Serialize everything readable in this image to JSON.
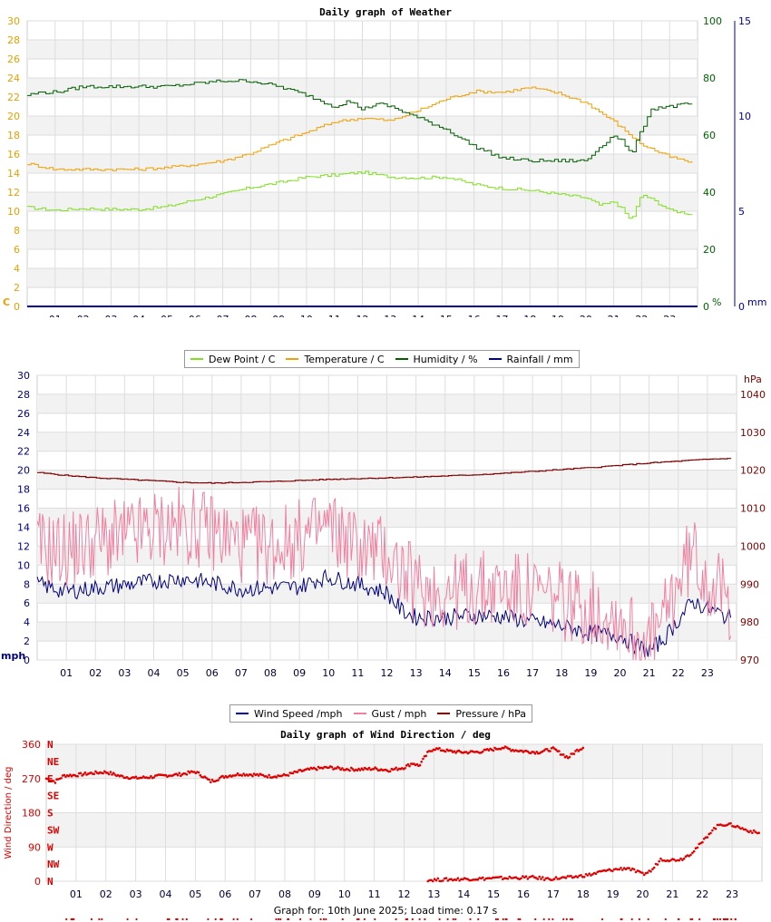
{
  "chart_data": [
    {
      "type": "line",
      "title": "Daily graph of Weather",
      "x_ticks": [
        "01",
        "02",
        "03",
        "04",
        "05",
        "06",
        "07",
        "08",
        "09",
        "10",
        "11",
        "12",
        "13",
        "14",
        "15",
        "16",
        "17",
        "18",
        "19",
        "20",
        "21",
        "22",
        "23"
      ],
      "x_range": [
        0,
        24
      ],
      "y_left": {
        "unit": "C",
        "ticks": [
          0,
          2,
          4,
          6,
          8,
          10,
          12,
          14,
          16,
          18,
          20,
          22,
          24,
          26,
          28,
          30
        ],
        "range": [
          0,
          30
        ],
        "color": "#e8a000"
      },
      "y_right1": {
        "unit": "%",
        "ticks": [
          0,
          20,
          40,
          60,
          80,
          100
        ],
        "range": [
          0,
          100
        ],
        "color": "#006400"
      },
      "y_right2": {
        "unit": "mm",
        "ticks": [
          0,
          5,
          10,
          15
        ],
        "range": [
          0,
          15
        ],
        "color": "#0000a0"
      },
      "grid": true,
      "legend": "bottom",
      "series": [
        {
          "name": "Dew Point / C",
          "color": "#80e020",
          "axis": "left",
          "x": [
            0,
            1,
            2,
            3,
            4,
            5,
            6,
            7,
            8,
            9,
            10,
            11,
            12,
            13,
            14,
            15,
            16,
            17,
            18,
            19,
            20,
            20.5,
            21,
            21.3,
            21.6,
            22,
            22.5,
            23,
            23.8
          ],
          "values": [
            10.4,
            10.1,
            10.3,
            10.2,
            10.2,
            10.5,
            11.2,
            11.8,
            12.5,
            13.0,
            13.6,
            13.8,
            14.1,
            13.6,
            13.5,
            13.6,
            12.8,
            12.4,
            12.2,
            11.8,
            11.4,
            10.6,
            11.0,
            10.2,
            9.0,
            11.8,
            11.0,
            10.1,
            9.7
          ]
        },
        {
          "name": "Temperature / C",
          "color": "#f0a000",
          "axis": "left",
          "x": [
            0,
            1,
            2,
            3,
            4,
            5,
            6,
            7,
            8,
            9,
            10,
            11,
            12,
            13,
            14,
            15,
            16,
            17,
            18,
            19,
            20,
            21,
            22,
            23,
            23.8
          ],
          "values": [
            15.0,
            14.4,
            14.4,
            14.4,
            14.4,
            14.6,
            14.9,
            15.3,
            16.1,
            17.3,
            18.3,
            19.4,
            19.8,
            19.5,
            20.6,
            21.8,
            22.6,
            22.5,
            23.0,
            22.4,
            21.4,
            19.4,
            17.0,
            15.7,
            15.1
          ]
        },
        {
          "name": "Humidity / %",
          "color": "#006000",
          "axis": "right1",
          "x": [
            0,
            0.5,
            1,
            2,
            3,
            4,
            5,
            6,
            7,
            8,
            9,
            10,
            11,
            11.5,
            12,
            12.5,
            13,
            14,
            15,
            15.5,
            16,
            16.5,
            17,
            18,
            19,
            20,
            20.5,
            21,
            21.3,
            21.6,
            22,
            22.3,
            22.8,
            23,
            23.8
          ],
          "values": [
            74,
            75,
            75,
            77,
            77,
            77,
            77,
            78,
            79,
            79,
            77,
            74,
            70,
            72,
            69,
            71,
            70,
            66,
            62,
            59,
            56,
            54,
            52,
            51,
            51,
            51,
            56,
            60,
            58,
            53,
            62,
            69,
            70,
            70,
            71
          ]
        },
        {
          "name": "Rainfall / mm",
          "color": "#0000a0",
          "axis": "right2",
          "x": [
            0,
            24
          ],
          "values": [
            0,
            0
          ]
        }
      ]
    },
    {
      "type": "line",
      "title": "",
      "x_ticks": [
        "01",
        "02",
        "03",
        "04",
        "05",
        "06",
        "07",
        "08",
        "09",
        "10",
        "11",
        "12",
        "13",
        "14",
        "15",
        "16",
        "17",
        "18",
        "19",
        "20",
        "21",
        "22",
        "23"
      ],
      "x_range": [
        0,
        24
      ],
      "y_left": {
        "unit": "mph",
        "ticks": [
          0,
          2,
          4,
          6,
          8,
          10,
          12,
          14,
          16,
          18,
          20,
          22,
          24,
          26,
          28,
          30
        ],
        "range": [
          0,
          30
        ],
        "color": "#000080"
      },
      "y_right": {
        "unit": "hPa",
        "ticks": [
          970,
          980,
          990,
          1000,
          1010,
          1020,
          1030,
          1040
        ],
        "range": [
          970,
          1045
        ],
        "color": "#800000"
      },
      "grid": true,
      "legend": "bottom",
      "series": [
        {
          "name": "Wind Speed /mph",
          "color": "#000080",
          "axis": "left",
          "x": [
            0,
            1,
            2,
            3,
            4,
            5,
            6,
            7,
            8,
            9,
            9.7,
            10,
            11,
            12,
            12.5,
            13,
            14,
            15,
            16,
            17,
            18,
            19,
            20,
            20.5,
            21,
            21.5,
            22,
            22.5,
            23,
            23.8
          ],
          "values": [
            8.0,
            7.2,
            7.6,
            7.9,
            8.3,
            8.6,
            8.1,
            7.5,
            7.6,
            7.7,
            8.6,
            8.7,
            8.0,
            7.1,
            5.2,
            4.5,
            4.5,
            4.7,
            4.6,
            4.0,
            3.6,
            2.8,
            2.6,
            1.6,
            0.9,
            2.2,
            4.2,
            6.2,
            5.4,
            4.4
          ]
        },
        {
          "name": "Gust / mph",
          "color": "#f080a0",
          "axis": "left",
          "x": [
            0,
            1,
            2,
            3,
            4,
            5,
            6,
            7,
            8,
            9,
            10,
            11,
            12,
            13,
            14,
            15,
            16,
            17,
            18,
            19,
            20,
            20.5,
            21,
            21.5,
            22,
            22.5,
            23,
            23.8
          ],
          "values": [
            11.8,
            11.6,
            12.5,
            12.8,
            13.8,
            14.2,
            13.6,
            12.2,
            12.0,
            12.8,
            14.0,
            12.0,
            11.2,
            7.6,
            7.2,
            7.4,
            7.6,
            7.0,
            6.2,
            5.4,
            4.6,
            2.6,
            1.8,
            4.0,
            8.4,
            11.4,
            8.6,
            5.8
          ]
        },
        {
          "name": "Pressure / hPa",
          "color": "#800000",
          "axis": "right",
          "x": [
            0,
            1,
            2,
            3,
            4,
            5,
            6,
            7,
            8,
            9,
            10,
            11,
            12,
            13,
            14,
            15,
            16,
            17,
            18,
            19,
            20,
            21,
            22,
            23,
            23.8
          ],
          "values": [
            1019.4,
            1018.6,
            1018.0,
            1017.6,
            1017.2,
            1016.8,
            1016.6,
            1016.8,
            1017.0,
            1017.3,
            1017.6,
            1017.8,
            1018.0,
            1018.2,
            1018.5,
            1018.8,
            1019.2,
            1019.7,
            1020.2,
            1020.7,
            1021.3,
            1021.9,
            1022.4,
            1022.9,
            1023.1
          ]
        }
      ]
    },
    {
      "type": "scatter",
      "title": "Daily graph of Wind Direction / deg",
      "x_ticks": [
        "01",
        "02",
        "03",
        "04",
        "05",
        "06",
        "07",
        "08",
        "09",
        "10",
        "11",
        "12",
        "13",
        "14",
        "15",
        "16",
        "17",
        "18",
        "19",
        "20",
        "21",
        "22",
        "23"
      ],
      "x_range": [
        0,
        24
      ],
      "y_left": {
        "label": "Wind Direction / deg",
        "ticks": [
          0,
          90,
          180,
          270,
          360
        ],
        "range": [
          0,
          360
        ],
        "color": "#e00000"
      },
      "compass_labels": [
        "N",
        "NE",
        "E",
        "SE",
        "S",
        "SW",
        "W",
        "NW",
        "N"
      ],
      "grid": true,
      "series": [
        {
          "name": "Wind Direction",
          "color": "#e00000",
          "x": [
            0,
            0.3,
            0.6,
            1,
            1.5,
            2,
            2.5,
            3,
            3.5,
            4,
            4.5,
            5,
            5.3,
            5.5,
            6,
            6.5,
            7,
            7.5,
            8,
            8.5,
            9,
            9.5,
            10,
            10.5,
            11,
            11.5,
            12,
            12.3,
            12.5,
            12.8,
            13,
            13.5,
            14,
            14.5,
            15,
            15.3,
            15.6,
            16,
            16.5,
            17,
            17.5,
            17.8,
            18
          ],
          "values": [
            270,
            262,
            278,
            279,
            284,
            287,
            276,
            271,
            274,
            278,
            281,
            288,
            274,
            262,
            276,
            282,
            280,
            276,
            278,
            289,
            296,
            299,
            295,
            294,
            296,
            292,
            299,
            311,
            303,
            338,
            349,
            342,
            339,
            340,
            347,
            352,
            346,
            342,
            339,
            348,
            325,
            344,
            352
          ]
        },
        {
          "name": "Wind Direction (low band)",
          "color": "#e00000",
          "x": [
            12.8,
            15.1,
            16.3,
            16.8,
            17.6,
            18.3,
            18.6,
            19,
            19.5,
            20,
            20.3,
            20.6,
            21,
            21.3,
            21.6,
            22,
            22.3,
            22.6,
            23,
            23.5,
            23.9
          ],
          "values": [
            3,
            8,
            10,
            6,
            10,
            18,
            25,
            30,
            35,
            18,
            28,
            58,
            56,
            58,
            72,
            102,
            132,
            150,
            148,
            134,
            126
          ]
        }
      ]
    }
  ],
  "legend1": [
    {
      "label": "Dew Point / C",
      "color": "#80e020"
    },
    {
      "label": "Temperature / C",
      "color": "#f0a000"
    },
    {
      "label": "Humidity / %",
      "color": "#006000"
    },
    {
      "label": "Rainfall / mm",
      "color": "#0000a0"
    }
  ],
  "legend2": [
    {
      "label": "Wind Speed /mph",
      "color": "#000080"
    },
    {
      "label": "Gust / mph",
      "color": "#f080a0"
    },
    {
      "label": "Pressure / hPa",
      "color": "#800000"
    }
  ],
  "footer": "Graph for: 10th June 2025; Load time: 0.17 s"
}
